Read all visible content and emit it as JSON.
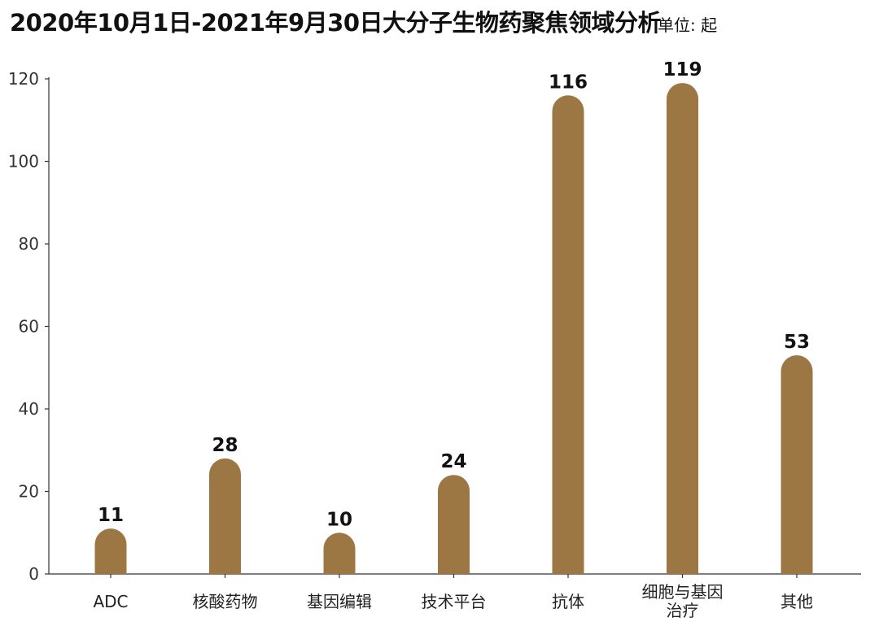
{
  "header": {
    "title": "2020年10月1日-2021年9月30日大分子生物药聚焦领域分析",
    "unit": "单位: 起"
  },
  "colors": {
    "bar": "#9c7743",
    "axis": "#333333"
  },
  "chart_data": {
    "type": "bar",
    "title": "2020年10月1日-2021年9月30日大分子生物药聚焦领域分析",
    "unit": "单位: 起",
    "xlabel": "",
    "ylabel": "",
    "categories": [
      [
        "ADC"
      ],
      [
        "核酸药物"
      ],
      [
        "基因编辑"
      ],
      [
        "技术平台"
      ],
      [
        "抗体"
      ],
      [
        "细胞与基因",
        "治疗"
      ],
      [
        "其他"
      ]
    ],
    "values": [
      11,
      28,
      10,
      24,
      116,
      119,
      53
    ],
    "ylim": [
      0,
      120
    ],
    "yticks": [
      0,
      20,
      40,
      60,
      80,
      100,
      120
    ],
    "grid": false,
    "legend": "none"
  }
}
